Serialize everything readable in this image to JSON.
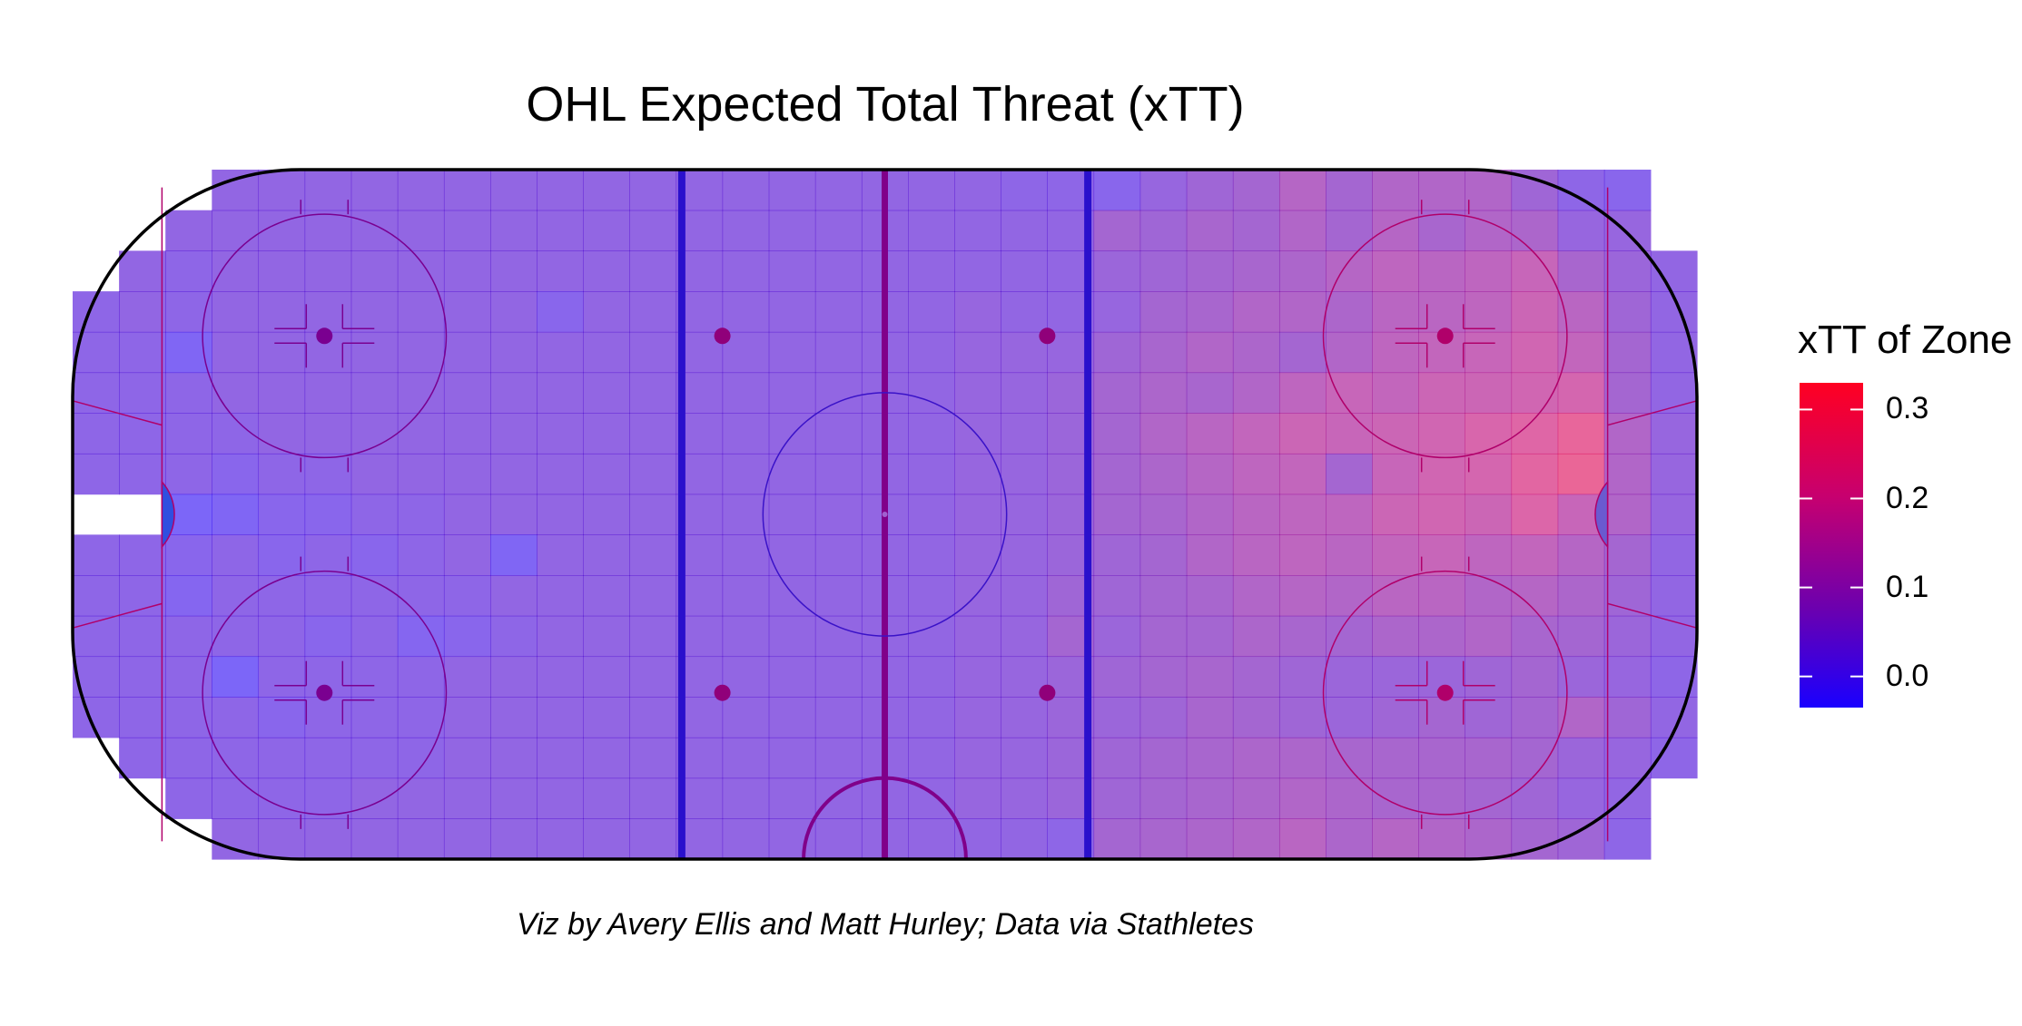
{
  "title": "OHL Expected Total Threat (xTT)",
  "caption": "Viz by Avery Ellis and Matt Hurley; Data via Stathletes",
  "chart_data": {
    "type": "heatmap",
    "title": "OHL Expected Total Threat (xTT)",
    "xlabel": "",
    "ylabel": "",
    "x_range": [
      -100,
      100
    ],
    "y_range": [
      -42.5,
      42.5
    ],
    "grid_columns": 35,
    "grid_rows": 17,
    "legend": {
      "title": "xTT of Zone",
      "ticks": [
        0.0,
        0.1,
        0.2,
        0.3
      ],
      "tick_labels": [
        "0.0",
        "0.1",
        "0.2",
        "0.3"
      ],
      "range": [
        -0.035,
        0.33
      ],
      "position": "right",
      "colors": [
        "#1a00ff",
        "#6a00b0",
        "#c7006f",
        "#ff0022"
      ]
    },
    "cell_alpha": 0.6,
    "values": [
      [
        null,
        null,
        null,
        0.03,
        0.03,
        0.03,
        0.03,
        0.03,
        0.03,
        0.03,
        0.03,
        0.03,
        0.03,
        0.03,
        0.03,
        0.03,
        0.03,
        0.03,
        0.03,
        0.03,
        0.02,
        0.02,
        0.01,
        0.04,
        0.06,
        0.07,
        0.11,
        0.07,
        0.1,
        0.1,
        0.1,
        0.06,
        0.02,
        0.01,
        null
      ],
      [
        null,
        null,
        0.03,
        0.03,
        0.03,
        0.03,
        0.03,
        0.03,
        0.03,
        0.03,
        0.03,
        0.03,
        0.03,
        0.03,
        0.03,
        0.03,
        0.03,
        0.03,
        0.03,
        0.03,
        0.03,
        0.03,
        0.07,
        0.06,
        0.08,
        0.07,
        0.1,
        0.07,
        0.11,
        0.08,
        0.1,
        0.09,
        0.04,
        0.04,
        null
      ],
      [
        null,
        0.03,
        0.02,
        0.03,
        0.03,
        0.03,
        0.03,
        0.03,
        0.03,
        0.03,
        0.03,
        0.03,
        0.03,
        0.03,
        0.03,
        0.03,
        0.03,
        0.03,
        0.03,
        0.03,
        0.03,
        0.03,
        0.05,
        0.06,
        0.07,
        0.08,
        0.09,
        0.11,
        0.13,
        0.12,
        0.13,
        0.15,
        0.08,
        0.05,
        0.03
      ],
      [
        0.02,
        0.03,
        0.02,
        0.03,
        0.03,
        0.03,
        0.03,
        0.03,
        0.03,
        0.03,
        0.01,
        0.03,
        0.03,
        0.03,
        0.03,
        0.03,
        0.03,
        0.03,
        0.03,
        0.04,
        0.03,
        0.03,
        0.04,
        0.07,
        0.08,
        0.1,
        0.1,
        0.09,
        0.12,
        0.12,
        0.13,
        0.16,
        0.12,
        0.06,
        0.03
      ],
      [
        0.02,
        0.02,
        -0.01,
        0.03,
        0.03,
        0.03,
        0.03,
        0.03,
        0.03,
        0.03,
        0.03,
        0.03,
        0.03,
        0.03,
        0.03,
        0.03,
        0.03,
        0.03,
        0.03,
        0.04,
        0.04,
        0.04,
        0.06,
        0.08,
        0.1,
        0.09,
        0.07,
        0.1,
        0.13,
        0.14,
        0.15,
        0.17,
        0.14,
        0.07,
        0.03
      ],
      [
        0.02,
        0.02,
        0.02,
        0.03,
        0.03,
        0.03,
        0.03,
        0.03,
        0.03,
        0.03,
        0.03,
        0.03,
        0.03,
        0.03,
        0.03,
        0.03,
        0.03,
        0.03,
        0.03,
        0.04,
        0.04,
        0.05,
        0.07,
        0.09,
        0.08,
        0.1,
        0.13,
        0.15,
        0.14,
        0.16,
        0.16,
        0.17,
        0.18,
        0.07,
        0.03
      ],
      [
        0.02,
        0.02,
        0.02,
        0.02,
        0.03,
        0.03,
        0.03,
        0.03,
        0.03,
        0.03,
        0.03,
        0.03,
        0.03,
        0.03,
        0.03,
        0.03,
        0.03,
        0.03,
        0.03,
        0.04,
        0.04,
        0.05,
        0.07,
        0.1,
        0.12,
        0.14,
        0.16,
        0.15,
        0.16,
        0.17,
        0.19,
        0.21,
        0.24,
        0.1,
        0.04
      ],
      [
        0.02,
        0.02,
        0.02,
        0.01,
        0.02,
        0.02,
        0.03,
        0.03,
        0.03,
        0.03,
        0.03,
        0.03,
        0.03,
        0.03,
        0.03,
        0.03,
        0.03,
        0.03,
        0.03,
        0.04,
        0.04,
        0.05,
        0.07,
        0.09,
        0.11,
        0.13,
        0.14,
        0.07,
        0.15,
        0.17,
        0.18,
        0.22,
        0.25,
        0.1,
        0.04
      ],
      [
        null,
        null,
        -0.02,
        -0.01,
        0.01,
        0.01,
        0.02,
        0.02,
        0.03,
        0.03,
        0.03,
        0.03,
        0.03,
        0.03,
        0.03,
        0.03,
        0.03,
        0.03,
        0.03,
        0.04,
        0.04,
        0.05,
        0.07,
        0.08,
        0.1,
        0.12,
        0.13,
        0.13,
        0.16,
        0.17,
        0.16,
        0.2,
        0.15,
        0.1,
        0.04
      ],
      [
        0.02,
        0.02,
        0.01,
        0.02,
        0.01,
        0.02,
        0.01,
        0.02,
        0.03,
        -0.01,
        0.03,
        0.03,
        0.03,
        0.03,
        0.03,
        0.03,
        0.03,
        0.03,
        0.03,
        0.04,
        0.04,
        0.05,
        0.06,
        0.07,
        0.1,
        0.12,
        0.13,
        0.12,
        0.14,
        0.15,
        0.13,
        0.14,
        0.11,
        0.07,
        0.03
      ],
      [
        0.02,
        0.02,
        0.0,
        0.02,
        0.02,
        0.02,
        0.02,
        0.02,
        0.02,
        0.03,
        0.03,
        0.03,
        0.03,
        0.03,
        0.03,
        0.03,
        0.03,
        0.03,
        0.03,
        0.04,
        0.04,
        0.06,
        0.06,
        0.07,
        0.08,
        0.1,
        0.11,
        0.1,
        0.12,
        0.12,
        0.1,
        0.11,
        0.09,
        0.06,
        0.03
      ],
      [
        0.02,
        0.02,
        0.02,
        0.02,
        0.02,
        0.01,
        0.02,
        0.0,
        0.01,
        0.02,
        0.03,
        0.03,
        0.03,
        0.03,
        0.03,
        0.03,
        0.03,
        0.03,
        0.03,
        0.04,
        0.04,
        0.07,
        0.05,
        0.07,
        0.07,
        0.09,
        0.08,
        0.07,
        0.09,
        0.09,
        0.1,
        0.08,
        0.07,
        0.05,
        0.03
      ],
      [
        0.02,
        0.02,
        0.02,
        -0.02,
        0.02,
        0.02,
        0.02,
        0.02,
        0.03,
        0.03,
        0.03,
        0.03,
        0.03,
        0.03,
        0.03,
        0.03,
        0.03,
        0.03,
        0.03,
        0.04,
        0.04,
        0.05,
        0.06,
        0.07,
        0.08,
        0.07,
        0.06,
        0.05,
        0.05,
        0.05,
        0.06,
        0.07,
        0.05,
        0.04,
        0.02
      ],
      [
        0.02,
        0.02,
        0.02,
        0.02,
        0.01,
        0.02,
        0.02,
        0.02,
        0.03,
        0.03,
        0.03,
        0.03,
        0.03,
        0.03,
        0.03,
        0.03,
        0.03,
        0.03,
        0.03,
        0.04,
        0.04,
        0.05,
        0.05,
        0.06,
        0.08,
        0.07,
        0.06,
        0.05,
        0.06,
        0.07,
        0.06,
        0.07,
        0.1,
        0.06,
        0.03
      ],
      [
        null,
        0.02,
        0.02,
        0.02,
        0.02,
        0.02,
        0.02,
        0.02,
        0.03,
        0.03,
        0.03,
        0.03,
        0.03,
        0.03,
        0.03,
        0.03,
        0.03,
        0.03,
        0.03,
        0.04,
        0.04,
        0.05,
        0.06,
        0.07,
        0.08,
        0.09,
        0.09,
        0.08,
        0.08,
        0.08,
        0.08,
        0.07,
        0.05,
        0.04,
        0.02
      ],
      [
        null,
        null,
        0.02,
        0.02,
        0.02,
        0.02,
        0.03,
        0.03,
        0.03,
        0.03,
        0.03,
        0.03,
        0.03,
        0.03,
        0.03,
        0.03,
        0.03,
        0.03,
        0.03,
        0.04,
        0.04,
        0.05,
        0.06,
        0.07,
        0.08,
        0.09,
        0.1,
        0.09,
        0.08,
        0.08,
        0.07,
        0.06,
        0.04,
        0.03,
        null
      ],
      [
        null,
        null,
        null,
        0.03,
        0.03,
        0.03,
        0.03,
        0.03,
        0.03,
        0.03,
        0.03,
        0.03,
        0.03,
        0.03,
        0.03,
        0.03,
        0.03,
        0.03,
        0.03,
        0.03,
        0.03,
        0.02,
        0.07,
        0.08,
        0.09,
        0.1,
        0.12,
        0.09,
        0.11,
        0.1,
        0.09,
        0.07,
        0.06,
        0.02,
        null
      ]
    ]
  }
}
